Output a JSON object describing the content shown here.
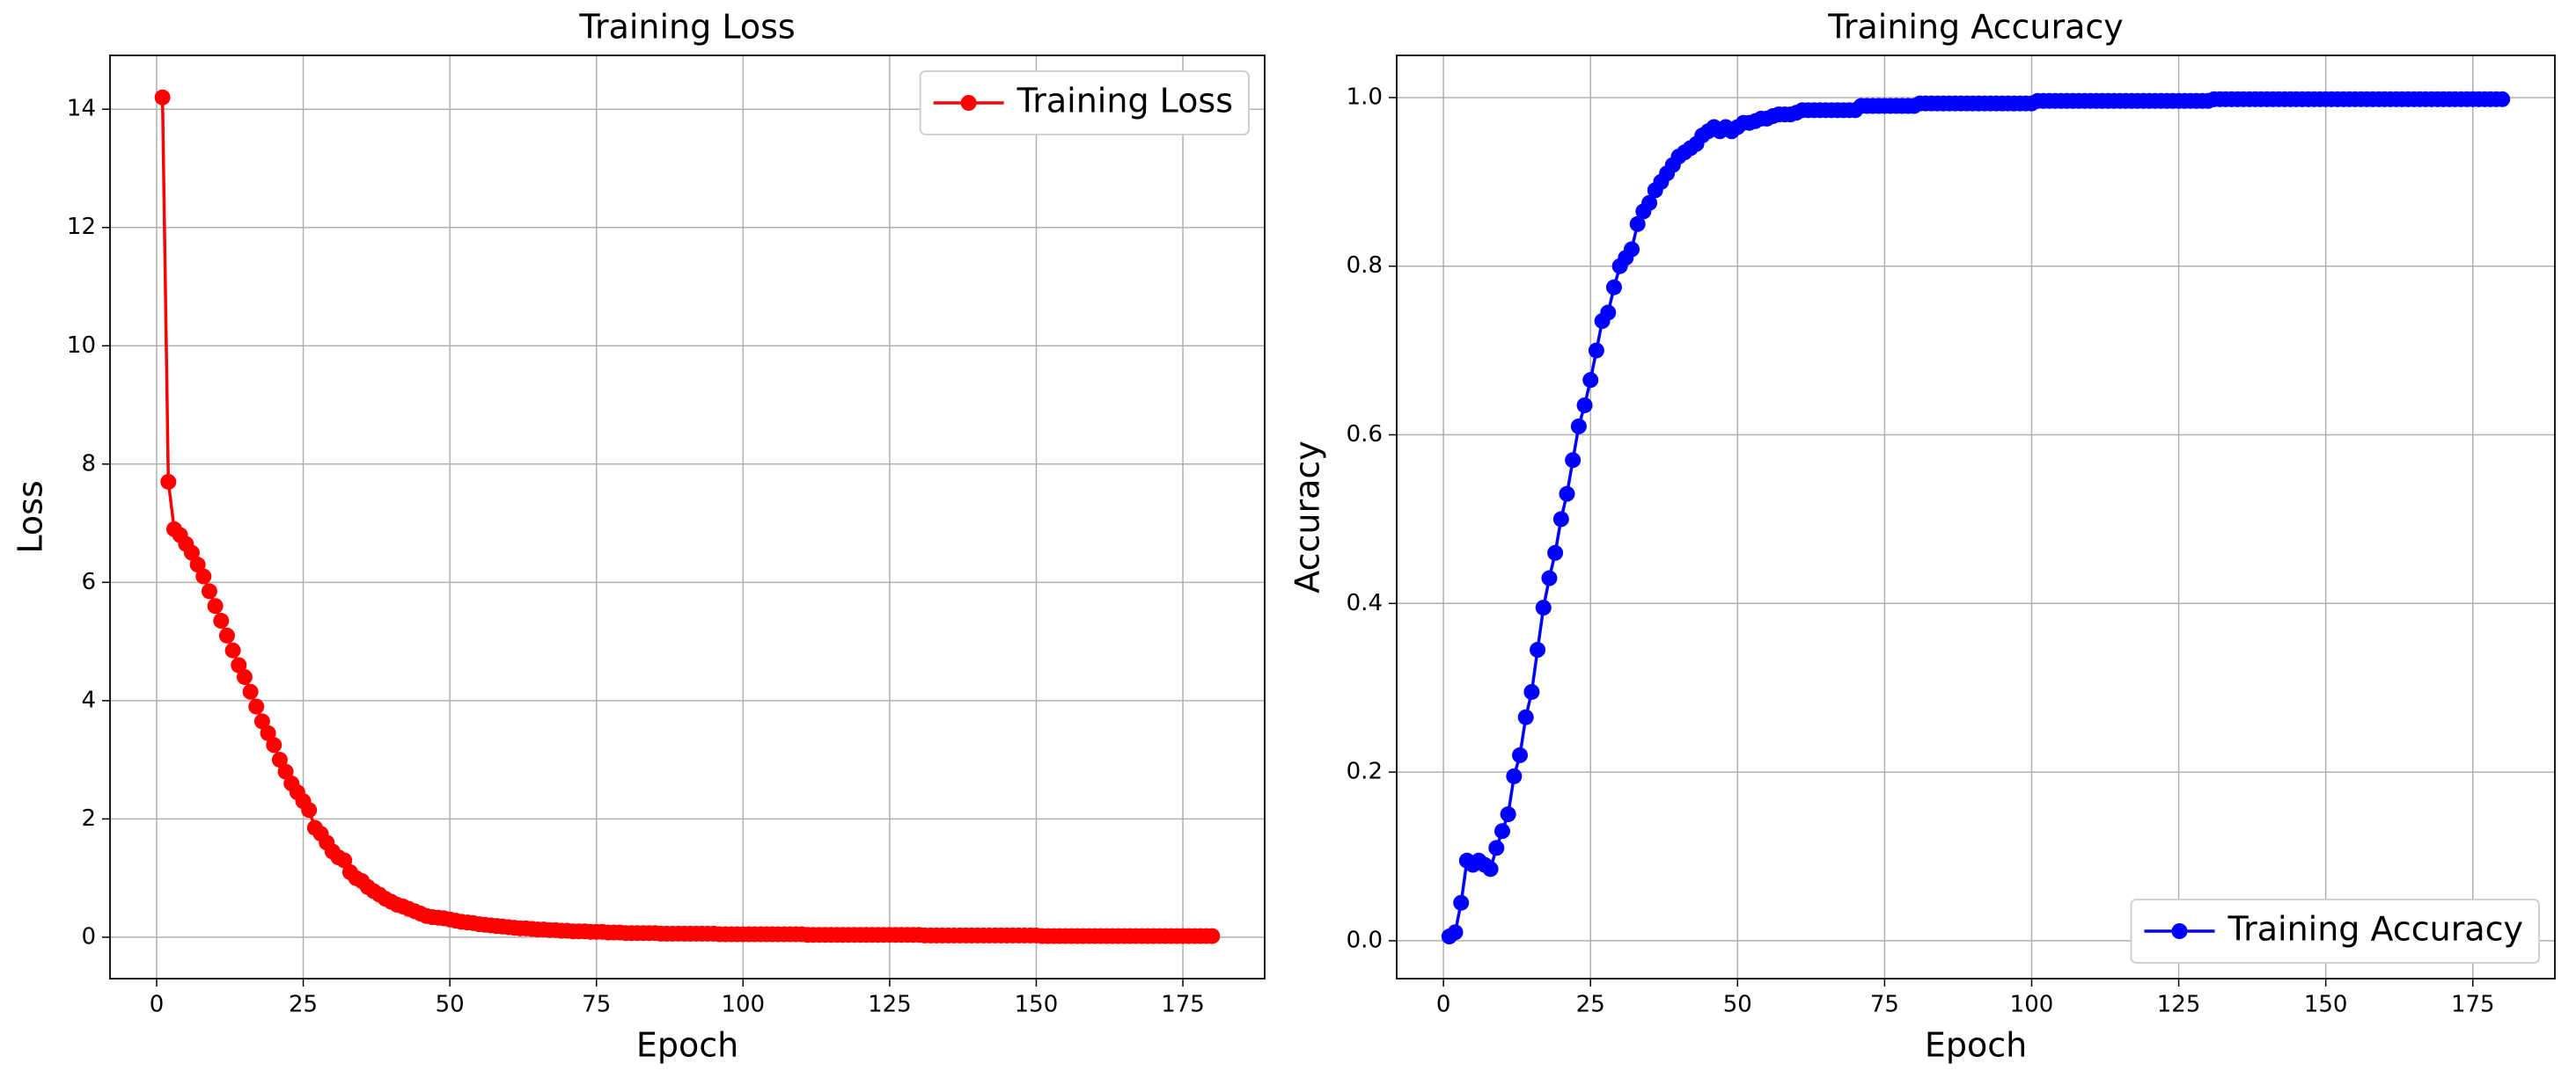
{
  "chart_data": [
    {
      "type": "line",
      "title": "Training Loss",
      "x_label": "Epoch",
      "y_label": "Loss",
      "x": [
        1,
        2,
        3,
        4,
        5,
        6,
        7,
        8,
        9,
        10,
        11,
        12,
        13,
        14,
        15,
        16,
        17,
        18,
        19,
        20,
        21,
        22,
        23,
        24,
        25,
        26,
        27,
        28,
        29,
        30,
        31,
        32,
        33,
        34,
        35,
        36,
        37,
        38,
        39,
        40,
        41,
        42,
        43,
        44,
        45,
        46,
        47,
        48,
        49,
        50,
        51,
        52,
        53,
        54,
        55,
        56,
        57,
        58,
        59,
        60,
        61,
        62,
        63,
        64,
        65,
        66,
        67,
        68,
        69,
        70,
        71,
        72,
        73,
        74,
        75,
        76,
        77,
        78,
        79,
        80,
        81,
        82,
        83,
        84,
        85,
        86,
        87,
        88,
        89,
        90,
        91,
        92,
        93,
        94,
        95,
        96,
        97,
        98,
        99,
        100,
        101,
        102,
        103,
        104,
        105,
        106,
        107,
        108,
        109,
        110,
        111,
        112,
        113,
        114,
        115,
        116,
        117,
        118,
        119,
        120,
        121,
        122,
        123,
        124,
        125,
        126,
        127,
        128,
        129,
        130,
        131,
        132,
        133,
        134,
        135,
        136,
        137,
        138,
        139,
        140,
        141,
        142,
        143,
        144,
        145,
        146,
        147,
        148,
        149,
        150,
        151,
        152,
        153,
        154,
        155,
        156,
        157,
        158,
        159,
        160,
        161,
        162,
        163,
        164,
        165,
        166,
        167,
        168,
        169,
        170,
        171,
        172,
        173,
        174,
        175,
        176,
        177,
        178,
        179,
        180
      ],
      "series": [
        {
          "name": "Training Loss",
          "color": "#ff0000",
          "values": [
            14.2,
            7.7,
            6.9,
            6.8,
            6.65,
            6.5,
            6.3,
            6.1,
            5.85,
            5.6,
            5.35,
            5.1,
            4.85,
            4.6,
            4.4,
            4.15,
            3.9,
            3.65,
            3.45,
            3.25,
            3.0,
            2.8,
            2.6,
            2.45,
            2.3,
            2.15,
            1.85,
            1.75,
            1.6,
            1.45,
            1.35,
            1.3,
            1.1,
            1.0,
            0.95,
            0.85,
            0.78,
            0.72,
            0.65,
            0.6,
            0.55,
            0.52,
            0.48,
            0.44,
            0.4,
            0.36,
            0.34,
            0.33,
            0.32,
            0.3,
            0.28,
            0.26,
            0.25,
            0.24,
            0.22,
            0.21,
            0.2,
            0.19,
            0.18,
            0.17,
            0.16,
            0.15,
            0.15,
            0.14,
            0.13,
            0.13,
            0.12,
            0.12,
            0.11,
            0.11,
            0.1,
            0.1,
            0.1,
            0.09,
            0.09,
            0.09,
            0.08,
            0.08,
            0.08,
            0.07,
            0.07,
            0.07,
            0.07,
            0.07,
            0.07,
            0.06,
            0.06,
            0.06,
            0.06,
            0.06,
            0.06,
            0.06,
            0.06,
            0.06,
            0.06,
            0.05,
            0.05,
            0.05,
            0.05,
            0.05,
            0.05,
            0.05,
            0.05,
            0.05,
            0.05,
            0.05,
            0.05,
            0.05,
            0.05,
            0.05,
            0.04,
            0.04,
            0.04,
            0.04,
            0.04,
            0.04,
            0.04,
            0.04,
            0.04,
            0.04,
            0.04,
            0.04,
            0.04,
            0.04,
            0.04,
            0.04,
            0.04,
            0.04,
            0.04,
            0.04,
            0.03,
            0.03,
            0.03,
            0.03,
            0.03,
            0.03,
            0.03,
            0.03,
            0.03,
            0.03,
            0.03,
            0.03,
            0.03,
            0.03,
            0.03,
            0.03,
            0.03,
            0.03,
            0.03,
            0.03,
            0.02,
            0.02,
            0.02,
            0.02,
            0.02,
            0.02,
            0.02,
            0.02,
            0.02,
            0.02,
            0.02,
            0.02,
            0.02,
            0.02,
            0.02,
            0.02,
            0.02,
            0.02,
            0.02,
            0.02,
            0.02,
            0.02,
            0.02,
            0.02,
            0.02,
            0.02,
            0.02,
            0.02,
            0.02,
            0.02
          ]
        }
      ],
      "xlim": [
        -7.95,
        188.95
      ],
      "xticks": [
        0,
        25,
        50,
        75,
        100,
        125,
        150,
        175
      ],
      "ylim": [
        -0.7,
        14.91
      ],
      "yticks": [
        0,
        2,
        4,
        6,
        8,
        10,
        12,
        14
      ],
      "grid": true,
      "legend": "upper right"
    },
    {
      "type": "line",
      "title": "Training Accuracy",
      "x_label": "Epoch",
      "y_label": "Accuracy",
      "x": [
        1,
        2,
        3,
        4,
        5,
        6,
        7,
        8,
        9,
        10,
        11,
        12,
        13,
        14,
        15,
        16,
        17,
        18,
        19,
        20,
        21,
        22,
        23,
        24,
        25,
        26,
        27,
        28,
        29,
        30,
        31,
        32,
        33,
        34,
        35,
        36,
        37,
        38,
        39,
        40,
        41,
        42,
        43,
        44,
        45,
        46,
        47,
        48,
        49,
        50,
        51,
        52,
        53,
        54,
        55,
        56,
        57,
        58,
        59,
        60,
        61,
        62,
        63,
        64,
        65,
        66,
        67,
        68,
        69,
        70,
        71,
        72,
        73,
        74,
        75,
        76,
        77,
        78,
        79,
        80,
        81,
        82,
        83,
        84,
        85,
        86,
        87,
        88,
        89,
        90,
        91,
        92,
        93,
        94,
        95,
        96,
        97,
        98,
        99,
        100,
        101,
        102,
        103,
        104,
        105,
        106,
        107,
        108,
        109,
        110,
        111,
        112,
        113,
        114,
        115,
        116,
        117,
        118,
        119,
        120,
        121,
        122,
        123,
        124,
        125,
        126,
        127,
        128,
        129,
        130,
        131,
        132,
        133,
        134,
        135,
        136,
        137,
        138,
        139,
        140,
        141,
        142,
        143,
        144,
        145,
        146,
        147,
        148,
        149,
        150,
        151,
        152,
        153,
        154,
        155,
        156,
        157,
        158,
        159,
        160,
        161,
        162,
        163,
        164,
        165,
        166,
        167,
        168,
        169,
        170,
        171,
        172,
        173,
        174,
        175,
        176,
        177,
        178,
        179,
        180
      ],
      "series": [
        {
          "name": "Training Accuracy",
          "color": "#0000ff",
          "values": [
            0.005,
            0.01,
            0.045,
            0.095,
            0.09,
            0.095,
            0.09,
            0.085,
            0.11,
            0.13,
            0.15,
            0.195,
            0.22,
            0.265,
            0.295,
            0.345,
            0.395,
            0.43,
            0.46,
            0.5,
            0.53,
            0.57,
            0.61,
            0.635,
            0.665,
            0.7,
            0.735,
            0.745,
            0.775,
            0.8,
            0.81,
            0.82,
            0.85,
            0.865,
            0.875,
            0.89,
            0.9,
            0.91,
            0.92,
            0.93,
            0.935,
            0.94,
            0.945,
            0.955,
            0.96,
            0.965,
            0.96,
            0.965,
            0.96,
            0.965,
            0.97,
            0.97,
            0.972,
            0.975,
            0.975,
            0.978,
            0.98,
            0.98,
            0.98,
            0.982,
            0.985,
            0.985,
            0.985,
            0.985,
            0.985,
            0.985,
            0.985,
            0.985,
            0.985,
            0.985,
            0.99,
            0.99,
            0.99,
            0.99,
            0.99,
            0.99,
            0.99,
            0.99,
            0.99,
            0.99,
            0.993,
            0.993,
            0.993,
            0.993,
            0.993,
            0.993,
            0.993,
            0.993,
            0.993,
            0.993,
            0.993,
            0.993,
            0.993,
            0.993,
            0.993,
            0.993,
            0.993,
            0.993,
            0.993,
            0.993,
            0.996,
            0.996,
            0.996,
            0.996,
            0.996,
            0.996,
            0.996,
            0.996,
            0.996,
            0.996,
            0.996,
            0.996,
            0.996,
            0.996,
            0.996,
            0.996,
            0.996,
            0.996,
            0.996,
            0.996,
            0.996,
            0.996,
            0.996,
            0.996,
            0.996,
            0.996,
            0.996,
            0.996,
            0.996,
            0.996,
            0.998,
            0.998,
            0.998,
            0.998,
            0.998,
            0.998,
            0.998,
            0.998,
            0.998,
            0.998,
            0.998,
            0.998,
            0.998,
            0.998,
            0.998,
            0.998,
            0.998,
            0.998,
            0.998,
            0.998,
            0.998,
            0.998,
            0.998,
            0.998,
            0.998,
            0.998,
            0.998,
            0.998,
            0.998,
            0.998,
            0.998,
            0.998,
            0.998,
            0.998,
            0.998,
            0.998,
            0.998,
            0.998,
            0.998,
            0.998,
            0.998,
            0.998,
            0.998,
            0.998,
            0.998,
            0.998,
            0.998,
            0.998,
            0.998,
            0.998
          ]
        }
      ],
      "xlim": [
        -7.95,
        188.95
      ],
      "xticks": [
        0,
        25,
        50,
        75,
        100,
        125,
        150,
        175
      ],
      "ylim": [
        -0.045,
        1.05
      ],
      "yticks": [
        {
          "value": 0,
          "label": "0.0"
        },
        0.2,
        0.4,
        0.6,
        0.8,
        {
          "value": 1,
          "label": "1.0"
        }
      ],
      "grid": true,
      "legend": "lower right"
    }
  ]
}
